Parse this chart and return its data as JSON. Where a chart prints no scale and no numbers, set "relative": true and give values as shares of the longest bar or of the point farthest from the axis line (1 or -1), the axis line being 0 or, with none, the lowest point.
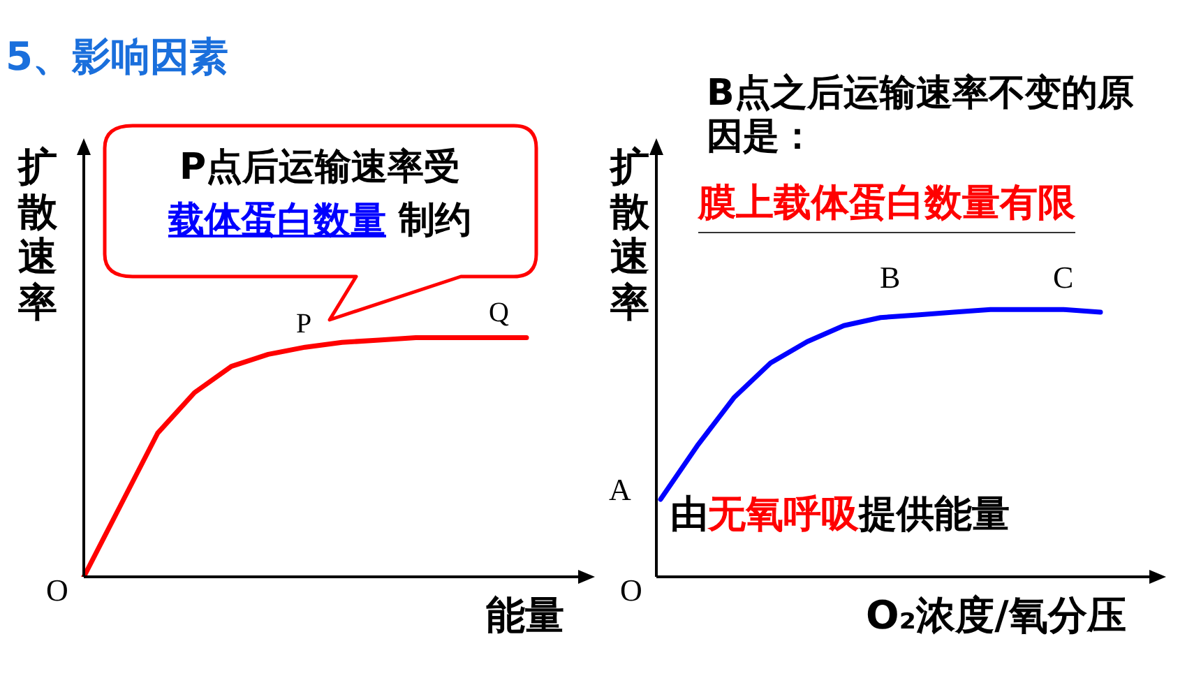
{
  "chart_data": [
    {
      "type": "line",
      "title": "5、影响因素",
      "ylabel": "扩散速率",
      "xlabel": "能量",
      "relative": true,
      "categories": [
        null,
        null,
        null,
        null,
        null,
        null,
        null,
        null,
        null,
        null,
        null,
        null,
        null
      ],
      "series": [
        {
          "color": "#ff0000",
          "values": [
            0,
            0.3,
            0.6,
            0.77,
            0.88,
            0.93,
            0.96,
            0.98,
            0.99,
            1,
            1,
            1,
            1
          ]
        }
      ],
      "annotations": [
        "O",
        "P",
        "Q",
        "P点后运输速率受",
        "载体蛋白数量",
        "制约"
      ]
    },
    {
      "type": "line",
      "ylabel": "扩散速率",
      "xlabel": "O₂浓度/氧分压",
      "relative": true,
      "categories": [
        null,
        null,
        null,
        null,
        null,
        null,
        null,
        null,
        null,
        null,
        null,
        null,
        null
      ],
      "series": [
        {
          "color": "#0000ff",
          "values": [
            0.29,
            0.49,
            0.67,
            0.8,
            0.88,
            0.94,
            0.97,
            0.98,
            0.99,
            1,
            1,
            1,
            0.99
          ]
        }
      ],
      "annotations": [
        "O",
        "A",
        "B",
        "C",
        "B点之后运输速率不变的原因是：",
        "膜上载体蛋白数量有限",
        "由",
        "无氧呼吸",
        "提供能量"
      ]
    }
  ]
}
